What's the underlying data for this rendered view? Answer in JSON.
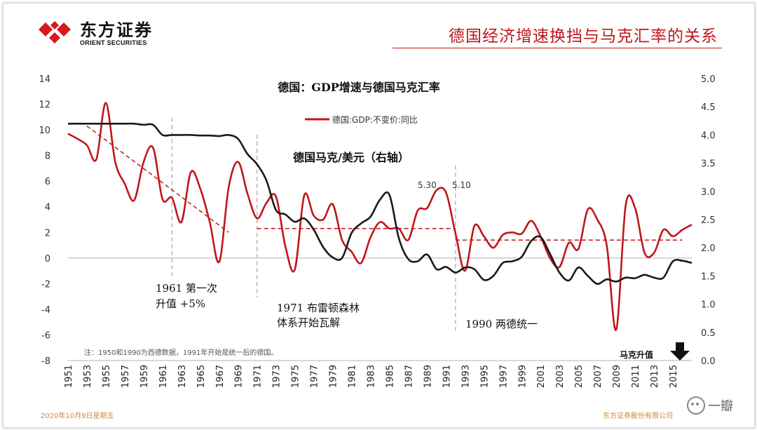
{
  "header": {
    "logo_cn": "东方证券",
    "logo_en": "ORIENT SECURITIES",
    "page_title": "德国经济增速换挡与马克汇率的关系"
  },
  "footer": {
    "date": "2020年10月9日星期五",
    "company": "东方证券股份有限公司",
    "watermark": "一瓣"
  },
  "colors": {
    "gdp": "#c0161b",
    "fx": "#1a1a1a",
    "accent": "#c0161b"
  },
  "chart_data": {
    "type": "line",
    "title": "德国：GDP增速与德国马克汇率",
    "legend": "德国:GDP:不变价:同比",
    "series_fx_label": "德国马克/美元（右轴）",
    "ylim_left": [
      -8,
      14
    ],
    "ylim_right": [
      0,
      5
    ],
    "left_ticks": [
      -8,
      -6,
      -4,
      -2,
      0,
      2,
      4,
      6,
      8,
      10,
      12,
      14
    ],
    "right_ticks": [
      "0.0",
      "0.5",
      "1.0",
      "1.5",
      "2.0",
      "2.5",
      "3.0",
      "3.5",
      "4.0",
      "4.5",
      "5.0"
    ],
    "x_ticks": [
      1951,
      1953,
      1955,
      1957,
      1959,
      1961,
      1963,
      1965,
      1967,
      1969,
      1971,
      1973,
      1975,
      1977,
      1979,
      1981,
      1983,
      1985,
      1987,
      1989,
      1991,
      1993,
      1995,
      1997,
      1999,
      2001,
      2003,
      2005,
      2007,
      2009,
      2011,
      2013,
      2015
    ],
    "x_range": [
      1951,
      2017
    ],
    "series": [
      {
        "name": "德国:GDP:不变价:同比",
        "axis": "left",
        "x": [
          1951,
          1952,
          1953,
          1954,
          1955,
          1956,
          1957,
          1958,
          1959,
          1960,
          1961,
          1962,
          1963,
          1964,
          1965,
          1966,
          1967,
          1968,
          1969,
          1970,
          1971,
          1972,
          1973,
          1974,
          1975,
          1976,
          1977,
          1978,
          1979,
          1980,
          1981,
          1982,
          1983,
          1984,
          1985,
          1986,
          1987,
          1988,
          1989,
          1990,
          1991,
          1992,
          1993,
          1994,
          1995,
          1996,
          1997,
          1998,
          1999,
          2000,
          2001,
          2002,
          2003,
          2004,
          2005,
          2006,
          2007,
          2008,
          2009,
          2010,
          2011,
          2012,
          2013,
          2014,
          2015,
          2016,
          2017
        ],
        "values": [
          9.7,
          9.3,
          8.8,
          7.7,
          12.1,
          7.5,
          5.8,
          4.5,
          7.5,
          8.6,
          4.6,
          4.7,
          2.8,
          6.7,
          5.4,
          2.8,
          -0.3,
          5.5,
          7.5,
          5.0,
          3.1,
          4.3,
          4.8,
          0.9,
          -0.9,
          4.9,
          3.3,
          3.0,
          4.2,
          1.4,
          0.5,
          -0.4,
          1.6,
          2.8,
          2.3,
          2.3,
          1.4,
          3.7,
          3.9,
          5.3,
          5.1,
          1.9,
          -1.0,
          2.5,
          1.7,
          0.8,
          1.8,
          2.0,
          1.9,
          2.9,
          1.7,
          0.0,
          -0.7,
          1.2,
          0.7,
          3.8,
          3.0,
          1.0,
          -5.6,
          4.1,
          3.9,
          0.4,
          0.4,
          2.2,
          1.7,
          2.2,
          2.6
        ]
      },
      {
        "name": "德国马克/美元",
        "axis": "right",
        "x": [
          1951,
          1952,
          1953,
          1954,
          1955,
          1956,
          1957,
          1958,
          1959,
          1960,
          1961,
          1962,
          1963,
          1964,
          1965,
          1966,
          1967,
          1968,
          1969,
          1970,
          1971,
          1972,
          1973,
          1974,
          1975,
          1976,
          1977,
          1978,
          1979,
          1980,
          1981,
          1982,
          1983,
          1984,
          1985,
          1986,
          1987,
          1988,
          1989,
          1990,
          1991,
          1992,
          1993,
          1994,
          1995,
          1996,
          1997,
          1998,
          1999,
          2000,
          2001,
          2002,
          2003,
          2004,
          2005,
          2006,
          2007,
          2008,
          2009,
          2010,
          2011,
          2012,
          2013,
          2014,
          2015,
          2016,
          2017
        ],
        "values": [
          4.2,
          4.2,
          4.2,
          4.2,
          4.2,
          4.2,
          4.2,
          4.2,
          4.18,
          4.18,
          4.0,
          4.0,
          4.0,
          4.0,
          3.99,
          3.99,
          3.98,
          4.0,
          3.93,
          3.66,
          3.48,
          3.19,
          2.67,
          2.59,
          2.46,
          2.52,
          2.32,
          2.01,
          1.83,
          1.82,
          2.26,
          2.43,
          2.55,
          2.85,
          2.94,
          2.17,
          1.8,
          1.76,
          1.88,
          1.62,
          1.66,
          1.56,
          1.65,
          1.62,
          1.43,
          1.5,
          1.73,
          1.76,
          1.84,
          2.12,
          2.19,
          1.89,
          1.56,
          1.42,
          1.65,
          1.5,
          1.36,
          1.44,
          1.4,
          1.47,
          1.46,
          1.52,
          1.47,
          1.47,
          1.76,
          1.77,
          1.73
        ]
      }
    ],
    "trend_lines": [
      {
        "axis": "left",
        "x": [
          1953,
          1968
        ],
        "y": [
          10.3,
          2.0
        ]
      },
      {
        "axis": "left",
        "x": [
          1971,
          1992
        ],
        "y": [
          2.3,
          2.3
        ]
      },
      {
        "axis": "left",
        "x": [
          1992,
          2016
        ],
        "y": [
          1.4,
          1.4
        ]
      }
    ],
    "vlines": [
      1962,
      1971,
      1992
    ],
    "annotations": {
      "a1961_line1": "1961 第一次",
      "a1961_line2": "升值 +5%",
      "a1971_line1": "1971 布雷顿森林",
      "a1971_line2": "体系开始瓦解",
      "a1990": "1990 两德统一",
      "peak1": "5.30",
      "peak2": "5.10",
      "note": "注：1950和1990为西德数据，1991年开始是统一后的德国。",
      "mark_label": "马克升值"
    }
  }
}
